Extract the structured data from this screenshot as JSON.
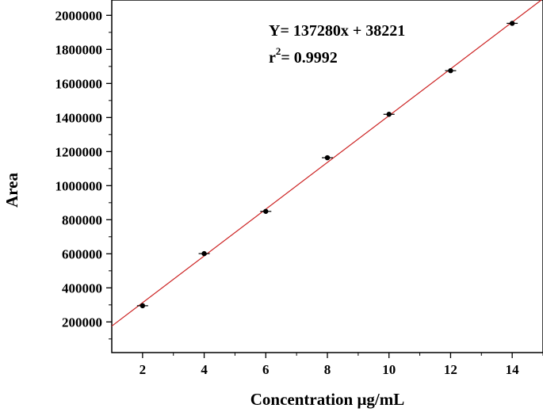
{
  "chart_data": {
    "type": "scatter",
    "xlabel": "Concentration μg/mL",
    "ylabel": "Area",
    "xlim": [
      1,
      15
    ],
    "ylim": [
      20000,
      2090000
    ],
    "x_ticks": [
      2,
      4,
      6,
      8,
      10,
      12,
      14
    ],
    "x_tick_labels": [
      "2",
      "4",
      "6",
      "8",
      "10",
      "12",
      "14"
    ],
    "y_ticks": [
      200000,
      400000,
      600000,
      800000,
      1000000,
      1200000,
      1400000,
      1600000,
      1800000,
      2000000
    ],
    "y_tick_labels": [
      "200000",
      "400000",
      "600000",
      "800000",
      "1000000",
      "1200000",
      "1400000",
      "1600000",
      "1800000",
      "2000000"
    ],
    "grid": false,
    "series": [
      {
        "x": [
          2,
          4,
          6,
          8,
          10,
          12,
          14
        ],
        "y": [
          295000,
          601000,
          849000,
          1164000,
          1419000,
          1675000,
          1953000
        ]
      }
    ],
    "fit_line": {
      "slope": 137280,
      "intercept": 38221,
      "color": "#cc2222"
    },
    "marker_color": "#000000",
    "annotations": {
      "equation": "Y= 137280x + 38221",
      "r2_prefix": "r",
      "r2_sup": "2",
      "r2_value": "= 0.9992"
    }
  }
}
